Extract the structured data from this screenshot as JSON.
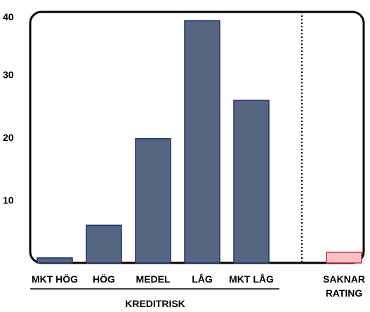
{
  "chart_data": {
    "type": "bar",
    "categories": [
      "MKT HÖG",
      "HÖG",
      "MEDEL",
      "LÅG",
      "MKT LÅG",
      "SAKNAR RATING"
    ],
    "category_label_lines": [
      [
        "MKT HÖG"
      ],
      [
        "HÖG"
      ],
      [
        "MEDEL"
      ],
      [
        "LÅG"
      ],
      [
        "MKT LÅG"
      ],
      [
        "SAKNAR",
        "RATING"
      ]
    ],
    "values": [
      0.8,
      6,
      19.8,
      38.6,
      25.9,
      1.7
    ],
    "group_title": "KREDITRISK",
    "yticks": [
      10,
      20,
      30,
      40
    ],
    "ylim": [
      0,
      40
    ],
    "grid": false,
    "colors": {
      "rated_fill": "#566580",
      "rated_stroke": "#1f2f73",
      "unrated_fill": "#f6c2c4",
      "unrated_stroke": "#d9242b",
      "frame": "#000000",
      "separator": "#000000"
    }
  }
}
